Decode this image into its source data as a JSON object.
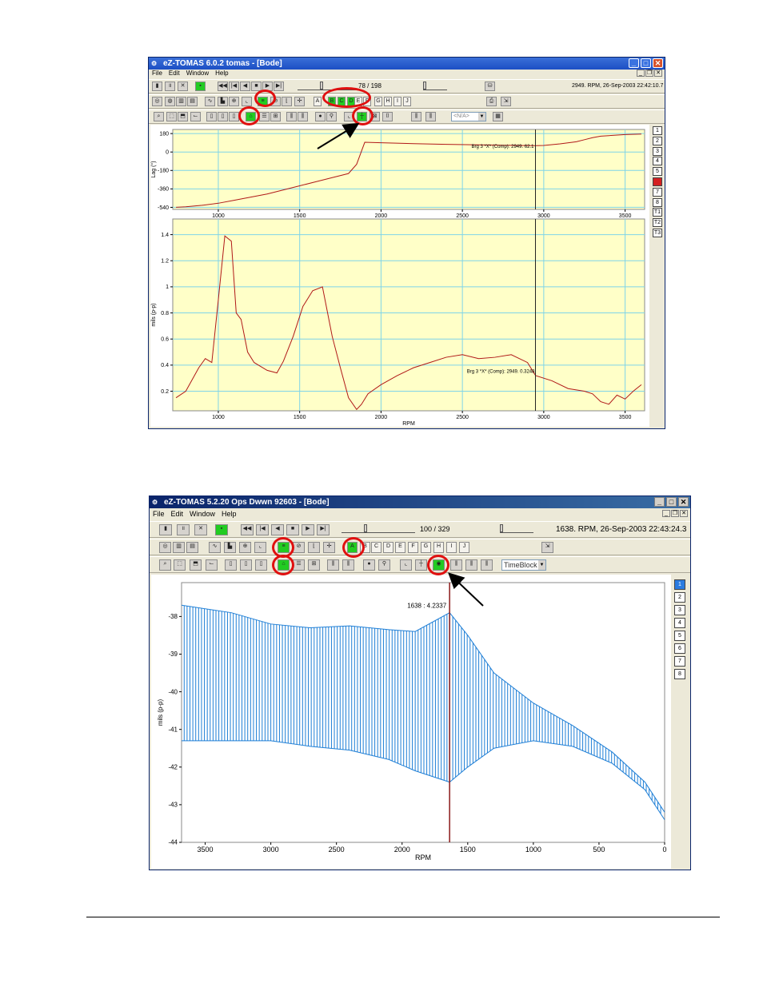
{
  "window1": {
    "title": "eZ-TOMAS 6.0.2      tomas - [Bode]",
    "menu": [
      "File",
      "Edit",
      "Window",
      "Help"
    ],
    "frame_counter": "78 / 198",
    "status": "2949. RPM,  26-Sep-2003 22:42:10.7",
    "letters": [
      "A",
      "B",
      "C",
      "D",
      "E",
      "F",
      "G",
      "H",
      "I",
      "J"
    ],
    "combo_value": "<N/A>",
    "side_buttons": [
      "1",
      "2",
      "3",
      "4",
      "5",
      "6",
      "7",
      "8",
      "T1",
      "T2",
      "T3"
    ],
    "phase_annotation": "Brg 3 *X* (Comp): 2949.  62.1",
    "amp_annotation": "Brg 3 *X* (Comp): 2949.  0.3248"
  },
  "window2": {
    "title": "eZ-TOMAS 5.2.20     Ops Dwwn 92603 - [Bode]",
    "menu": [
      "File",
      "Edit",
      "Window",
      "Help"
    ],
    "frame_counter": "100 / 329",
    "status": "1638. RPM,  26-Sep-2003 22:43:24.3",
    "letters": [
      "A",
      "B",
      "C",
      "D",
      "E",
      "F",
      "G",
      "H",
      "I",
      "J"
    ],
    "combo_value": "TimeBlock",
    "side_buttons": [
      "1",
      "2",
      "3",
      "4",
      "5",
      "6",
      "7",
      "8"
    ],
    "cursor_annotation": "1638 :  4.2337"
  },
  "colors": {
    "phase_line": "#b01818",
    "amp_line": "#b01818",
    "cascade_line": "#1f7fd6",
    "grid": "#7fd4e8",
    "plot_bg": "#ffffc8",
    "highlight_ring": "#e01010",
    "green_button": "#22cc22"
  },
  "chart_data": [
    {
      "type": "line",
      "title": "",
      "xlabel": "",
      "ylabel": "Lag (°)",
      "xlim": [
        720,
        3620
      ],
      "ylim": [
        -560,
        220
      ],
      "xticks": [
        1000,
        1500,
        2000,
        2500,
        3000,
        3500
      ],
      "yticks": [
        180,
        0,
        -180,
        -360,
        -540
      ],
      "cursor_x": 2949,
      "grid": true,
      "x": [
        740,
        800,
        900,
        1000,
        1100,
        1200,
        1300,
        1400,
        1500,
        1600,
        1700,
        1800,
        1850,
        1900,
        2000,
        2200,
        2400,
        2600,
        2800,
        2950,
        3000,
        3100,
        3200,
        3250,
        3300,
        3350,
        3400,
        3500,
        3600
      ],
      "y": [
        -540,
        -535,
        -520,
        -500,
        -470,
        -440,
        -410,
        -370,
        -330,
        -290,
        -250,
        -210,
        -120,
        95,
        90,
        82,
        75,
        70,
        65,
        62,
        64,
        80,
        100,
        120,
        140,
        155,
        160,
        170,
        175
      ]
    },
    {
      "type": "line",
      "title": "",
      "xlabel": "RPM",
      "ylabel": "mils (p-p)",
      "xlim": [
        720,
        3620
      ],
      "ylim": [
        0.05,
        1.52
      ],
      "xticks": [
        1000,
        1500,
        2000,
        2500,
        3000,
        3500
      ],
      "yticks": [
        1.4,
        1.2,
        1,
        0.8,
        0.6,
        0.4,
        0.2
      ],
      "cursor_x": 2949,
      "grid": true,
      "x": [
        740,
        800,
        880,
        920,
        960,
        1000,
        1040,
        1080,
        1110,
        1140,
        1180,
        1220,
        1300,
        1360,
        1400,
        1460,
        1520,
        1580,
        1640,
        1700,
        1750,
        1800,
        1850,
        1880,
        1920,
        2000,
        2100,
        2200,
        2300,
        2400,
        2500,
        2600,
        2700,
        2800,
        2900,
        2950,
        3050,
        3150,
        3250,
        3300,
        3350,
        3400,
        3450,
        3500,
        3550,
        3600
      ],
      "y": [
        0.15,
        0.2,
        0.38,
        0.45,
        0.42,
        0.9,
        1.39,
        1.35,
        0.8,
        0.75,
        0.5,
        0.42,
        0.36,
        0.34,
        0.43,
        0.62,
        0.85,
        0.97,
        1.0,
        0.62,
        0.38,
        0.15,
        0.06,
        0.1,
        0.18,
        0.25,
        0.32,
        0.38,
        0.42,
        0.46,
        0.48,
        0.45,
        0.46,
        0.48,
        0.42,
        0.32,
        0.28,
        0.22,
        0.2,
        0.18,
        0.12,
        0.1,
        0.17,
        0.14,
        0.2,
        0.25
      ]
    },
    {
      "type": "line",
      "title": "",
      "xlabel": "RPM",
      "ylabel": "mils (p-p)",
      "xlim": [
        3680,
        0
      ],
      "ylim": [
        -44,
        -37.1
      ],
      "xticks": [
        3500,
        3000,
        2500,
        2000,
        1500,
        1000,
        500,
        0
      ],
      "yticks": [
        -38,
        -39,
        -40,
        -41,
        -42,
        -43,
        -44
      ],
      "cursor_x": 1638,
      "grid": false,
      "series": [
        {
          "x": [
            3680,
            3300,
            3000,
            2700,
            2400,
            2100,
            1900,
            1638,
            1500,
            1300,
            1000,
            700,
            400,
            150,
            0
          ],
          "y": [
            -37.7,
            -37.9,
            -38.2,
            -38.3,
            -38.25,
            -38.35,
            -38.4,
            -37.9,
            -38.5,
            -39.5,
            -40.3,
            -40.9,
            -41.6,
            -42.4,
            -43.2
          ]
        },
        {
          "x": [
            3680,
            3300,
            3000,
            2700,
            2400,
            2100,
            1900,
            1638,
            1500,
            1300,
            1000,
            700,
            400,
            150,
            0
          ],
          "y": [
            -41.3,
            -41.3,
            -41.3,
            -41.45,
            -41.55,
            -41.8,
            -42.1,
            -42.4,
            -42.0,
            -41.5,
            -41.3,
            -41.45,
            -41.9,
            -42.6,
            -43.4
          ]
        }
      ]
    }
  ]
}
